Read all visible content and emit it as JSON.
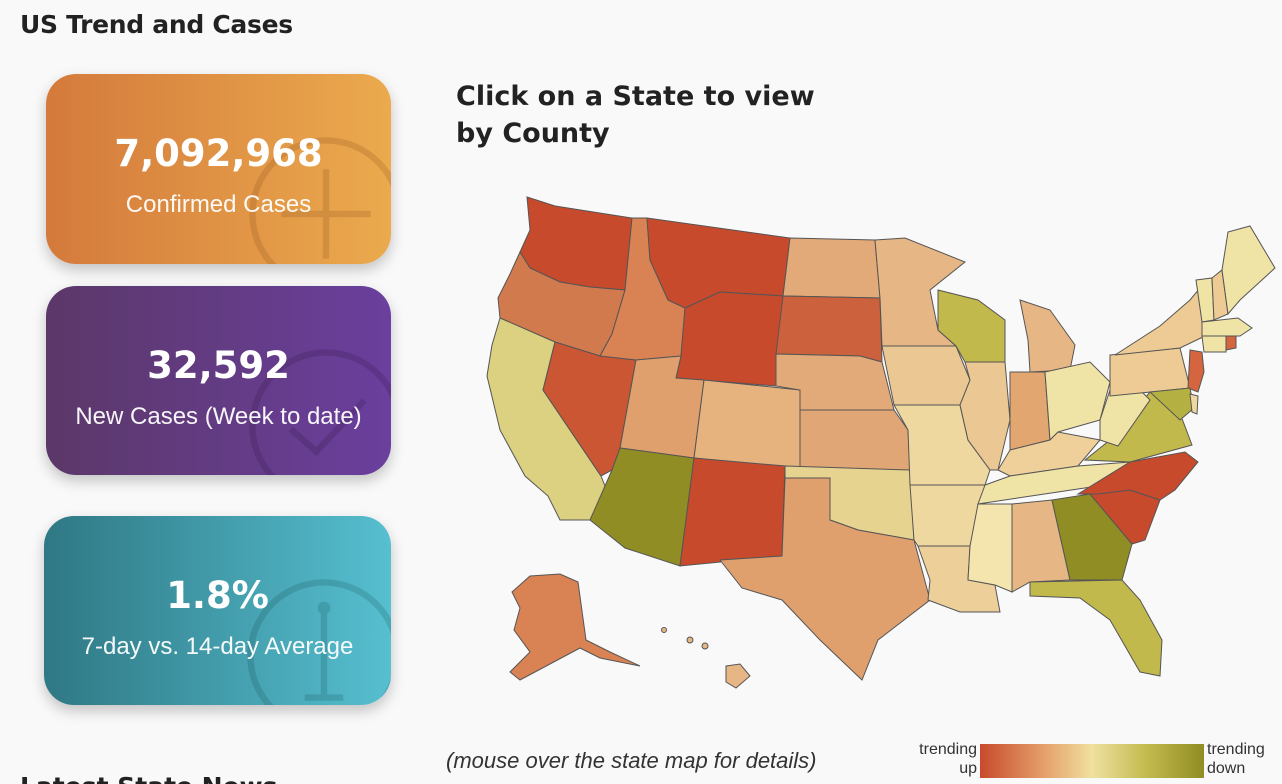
{
  "header": {
    "title": "US Trend and Cases"
  },
  "cards": [
    {
      "value": "7,092,968",
      "label": "Confirmed Cases",
      "icon": "plus-circle-icon",
      "colors": [
        "#d47a3c",
        "#ebaa4d"
      ]
    },
    {
      "value": "32,592",
      "label": "New Cases (Week to date)",
      "icon": "check-circle-icon",
      "colors": [
        "#5b3868",
        "#6a3f9e"
      ]
    },
    {
      "value": "1.8%",
      "label": "7-day vs. 14-day Average",
      "icon": "anchor-circle-icon",
      "colors": [
        "#2f7884",
        "#56bfd0"
      ]
    }
  ],
  "map": {
    "title": "Click on a State to view by County",
    "note": "(mouse over the state map for details)",
    "legend": {
      "left": "trending up",
      "right": "trending down",
      "colors": [
        "#c84a2d",
        "#e6a46d",
        "#f0e0a0",
        "#c2b94c",
        "#8f8d23"
      ]
    }
  },
  "next_section": {
    "title": "Latest State News"
  }
}
